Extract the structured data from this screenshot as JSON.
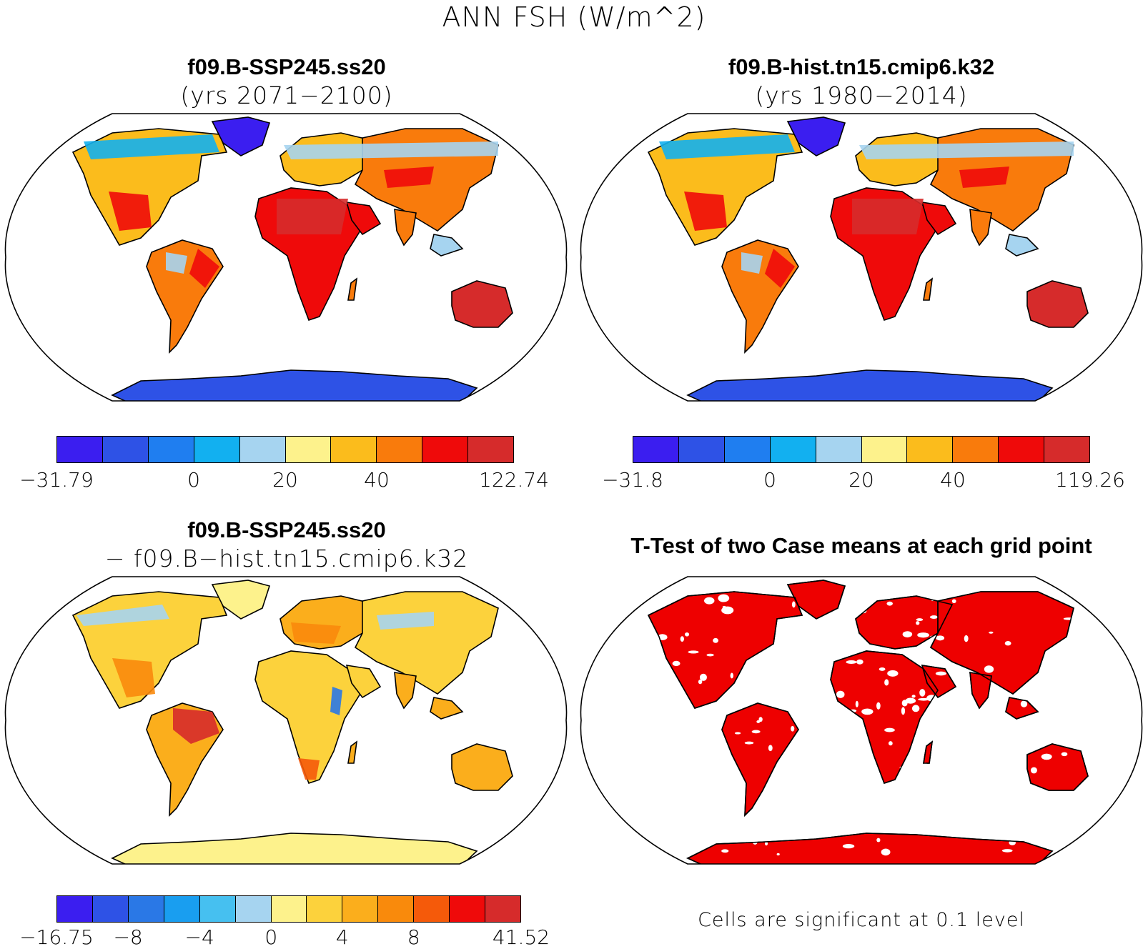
{
  "figure_title": "ANN FSH (W/m^2)",
  "panels": {
    "p1": {
      "title": "f09.B-SSP245.ss20",
      "subtitle": "(yrs 2071−2100)",
      "ticks": [
        "−31.79",
        "0",
        "20",
        "40",
        "122.74"
      ]
    },
    "p2": {
      "title": "f09.B-hist.tn15.cmip6.k32",
      "subtitle": "(yrs 1980−2014)",
      "ticks": [
        "−31.8",
        "0",
        "20",
        "40",
        "119.26"
      ]
    },
    "p3": {
      "title": "f09.B-SSP245.ss20",
      "subtitle": "− f09.B−hist.tn15.cmip6.k32",
      "ticks": [
        "−16.75",
        "−8",
        "−4",
        "0",
        "4",
        "8",
        "41.52"
      ]
    },
    "p4": {
      "title": "T-Test of two Case means at each grid point",
      "footnote": "Cells are significant at 0.1 level"
    }
  },
  "colors": {
    "abs_scale": [
      "#3b1ef0",
      "#2e52e6",
      "#1f7ef0",
      "#12b0f0",
      "#a6d4f0",
      "#fdf28c",
      "#fbbc1c",
      "#f97b0c",
      "#ef0a0a",
      "#d62b2b"
    ],
    "diff_scale": [
      "#3b1ef0",
      "#2e52e6",
      "#2a78e6",
      "#199ef0",
      "#46c0f0",
      "#a6d4f0",
      "#fdf28c",
      "#fcd23c",
      "#fbae1c",
      "#f98a0c",
      "#f55a0a",
      "#ef0a0a",
      "#d62b2b"
    ],
    "significance": "#ee0000"
  }
}
